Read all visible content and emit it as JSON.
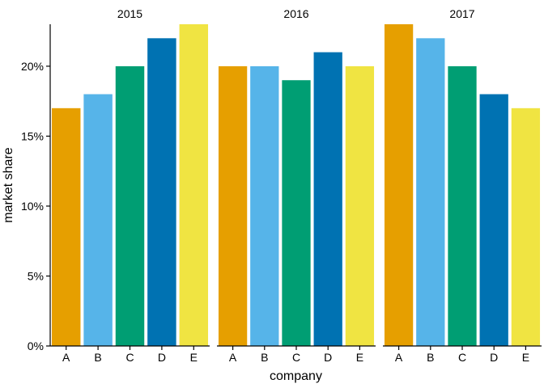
{
  "chart_data": {
    "type": "bar",
    "facets": [
      "2015",
      "2016",
      "2017"
    ],
    "categories": [
      "A",
      "B",
      "C",
      "D",
      "E"
    ],
    "series": [
      {
        "facet": "2015",
        "values": [
          17,
          18,
          20,
          22,
          23
        ]
      },
      {
        "facet": "2016",
        "values": [
          20,
          20,
          19,
          21,
          20
        ]
      },
      {
        "facet": "2017",
        "values": [
          23,
          22,
          20,
          18,
          17
        ]
      }
    ],
    "colors": [
      "#E69F00",
      "#56B4E9",
      "#009E73",
      "#0072B2",
      "#F0E442"
    ],
    "xlabel": "company",
    "ylabel": "market share",
    "ylim": [
      0,
      23
    ],
    "yticks": [
      0,
      5,
      10,
      15,
      20
    ],
    "ytick_labels": [
      "0%",
      "5%",
      "10%",
      "15%",
      "20%"
    ],
    "grid": false,
    "legend": "none"
  }
}
